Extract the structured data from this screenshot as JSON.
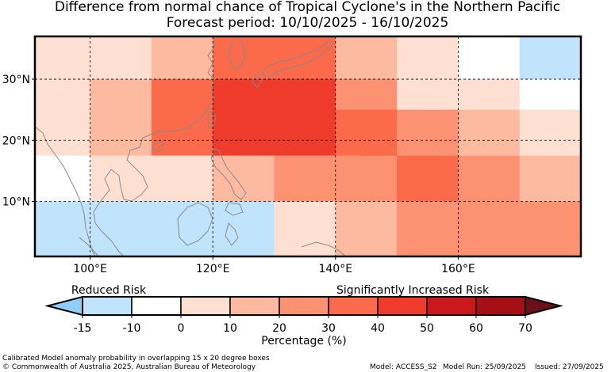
{
  "title": {
    "line1": "Difference from normal chance of Tropical Cyclone's in the Northern Pacific",
    "line2": "Forecast period: 10/10/2025 - 16/10/2025"
  },
  "map": {
    "lon_range": [
      91,
      180
    ],
    "lat_range": [
      1,
      37
    ],
    "x_ticks": [
      {
        "value": 100,
        "label": "100°E"
      },
      {
        "value": 120,
        "label": "120°E"
      },
      {
        "value": 140,
        "label": "140°E"
      },
      {
        "value": 160,
        "label": "160°E"
      }
    ],
    "y_ticks": [
      {
        "value": 10,
        "label": "10°N"
      },
      {
        "value": 20,
        "label": "20°N"
      },
      {
        "value": 30,
        "label": "30°N"
      }
    ],
    "boxes_note": "Calibrated Model anomaly probability in overlapping 15 x 20 degree boxes",
    "cells": [
      {
        "lon": [
          91,
          100
        ],
        "lat": [
          30,
          37
        ],
        "pct": 0
      },
      {
        "lon": [
          100,
          110
        ],
        "lat": [
          30,
          37
        ],
        "pct": 5
      },
      {
        "lon": [
          110,
          120
        ],
        "lat": [
          30,
          37
        ],
        "pct": 15
      },
      {
        "lon": [
          120,
          130
        ],
        "lat": [
          30,
          37
        ],
        "pct": 35
      },
      {
        "lon": [
          130,
          140
        ],
        "lat": [
          30,
          37
        ],
        "pct": 35
      },
      {
        "lon": [
          140,
          150
        ],
        "lat": [
          30,
          37
        ],
        "pct": 15
      },
      {
        "lon": [
          150,
          160
        ],
        "lat": [
          30,
          37
        ],
        "pct": 5
      },
      {
        "lon": [
          160,
          170
        ],
        "lat": [
          30,
          37
        ],
        "pct": -5
      },
      {
        "lon": [
          170,
          180
        ],
        "lat": [
          30,
          37
        ],
        "pct": -12
      },
      {
        "lon": [
          91,
          100
        ],
        "lat": [
          25,
          30
        ],
        "pct": 0
      },
      {
        "lon": [
          100,
          110
        ],
        "lat": [
          25,
          30
        ],
        "pct": 15
      },
      {
        "lon": [
          110,
          120
        ],
        "lat": [
          25,
          30
        ],
        "pct": 35
      },
      {
        "lon": [
          120,
          130
        ],
        "lat": [
          25,
          30
        ],
        "pct": 45
      },
      {
        "lon": [
          130,
          140
        ],
        "lat": [
          25,
          30
        ],
        "pct": 45
      },
      {
        "lon": [
          140,
          150
        ],
        "lat": [
          25,
          30
        ],
        "pct": 25
      },
      {
        "lon": [
          150,
          160
        ],
        "lat": [
          25,
          30
        ],
        "pct": 5
      },
      {
        "lon": [
          160,
          170
        ],
        "lat": [
          25,
          30
        ],
        "pct": 0
      },
      {
        "lon": [
          170,
          180
        ],
        "lat": [
          25,
          30
        ],
        "pct": -5
      },
      {
        "lon": [
          91,
          100
        ],
        "lat": [
          17.5,
          25
        ],
        "pct": 5
      },
      {
        "lon": [
          100,
          110
        ],
        "lat": [
          17.5,
          25
        ],
        "pct": 15
      },
      {
        "lon": [
          110,
          120
        ],
        "lat": [
          17.5,
          25
        ],
        "pct": 35
      },
      {
        "lon": [
          120,
          130
        ],
        "lat": [
          17.5,
          25
        ],
        "pct": 45
      },
      {
        "lon": [
          130,
          140
        ],
        "lat": [
          17.5,
          25
        ],
        "pct": 45
      },
      {
        "lon": [
          140,
          150
        ],
        "lat": [
          17.5,
          25
        ],
        "pct": 35
      },
      {
        "lon": [
          150,
          160
        ],
        "lat": [
          17.5,
          25
        ],
        "pct": 25
      },
      {
        "lon": [
          160,
          170
        ],
        "lat": [
          17.5,
          25
        ],
        "pct": 15
      },
      {
        "lon": [
          170,
          180
        ],
        "lat": [
          17.5,
          25
        ],
        "pct": 5
      },
      {
        "lon": [
          91,
          100
        ],
        "lat": [
          10,
          17.5
        ],
        "pct": -5
      },
      {
        "lon": [
          100,
          110
        ],
        "lat": [
          10,
          17.5
        ],
        "pct": 0
      },
      {
        "lon": [
          110,
          120
        ],
        "lat": [
          10,
          17.5
        ],
        "pct": 5
      },
      {
        "lon": [
          120,
          130
        ],
        "lat": [
          10,
          17.5
        ],
        "pct": 15
      },
      {
        "lon": [
          130,
          140
        ],
        "lat": [
          10,
          17.5
        ],
        "pct": 25
      },
      {
        "lon": [
          140,
          150
        ],
        "lat": [
          10,
          17.5
        ],
        "pct": 25
      },
      {
        "lon": [
          150,
          160
        ],
        "lat": [
          10,
          17.5
        ],
        "pct": 35
      },
      {
        "lon": [
          160,
          170
        ],
        "lat": [
          10,
          17.5
        ],
        "pct": 25
      },
      {
        "lon": [
          170,
          180
        ],
        "lat": [
          10,
          17.5
        ],
        "pct": 15
      },
      {
        "lon": [
          91,
          100
        ],
        "lat": [
          1,
          10
        ],
        "pct": -12
      },
      {
        "lon": [
          100,
          110
        ],
        "lat": [
          1,
          10
        ],
        "pct": -12
      },
      {
        "lon": [
          110,
          120
        ],
        "lat": [
          1,
          10
        ],
        "pct": -12
      },
      {
        "lon": [
          120,
          130
        ],
        "lat": [
          1,
          10
        ],
        "pct": -12
      },
      {
        "lon": [
          130,
          140
        ],
        "lat": [
          1,
          10
        ],
        "pct": 0
      },
      {
        "lon": [
          140,
          150
        ],
        "lat": [
          1,
          10
        ],
        "pct": 15
      },
      {
        "lon": [
          150,
          160
        ],
        "lat": [
          1,
          10
        ],
        "pct": 25
      },
      {
        "lon": [
          160,
          170
        ],
        "lat": [
          1,
          10
        ],
        "pct": 25
      },
      {
        "lon": [
          170,
          180
        ],
        "lat": [
          1,
          10
        ],
        "pct": 25
      }
    ]
  },
  "colorbar": {
    "reduced_label": "Reduced Risk",
    "increased_label": "Significantly Increased Risk",
    "axis_label": "Percentage (%)",
    "boundaries": [
      -15,
      -10,
      0,
      10,
      20,
      30,
      40,
      50,
      60,
      70
    ],
    "tick_labels": [
      "-15",
      "-10",
      "0",
      "10",
      "20",
      "30",
      "40",
      "50",
      "60",
      "70"
    ],
    "under_color": "#8dcff9",
    "over_color": "#6b0f1a",
    "colors": [
      "#bfe4fb",
      "#ffffff",
      "#fee0d2",
      "#fcbba1",
      "#fc9272",
      "#fb6a4a",
      "#ef3b2c",
      "#cb181d",
      "#a50f15"
    ]
  },
  "footer": {
    "note": "Calibrated Model anomaly probability in overlapping 15 x 20 degree boxes",
    "copyright": "© Commonwealth of Australia 2025, Australian Bureau of Meteorology",
    "model": "Model: ACCESS_S2",
    "model_run": "Model Run: 25/09/2025",
    "issued": "Issued: 27/09/2025"
  }
}
